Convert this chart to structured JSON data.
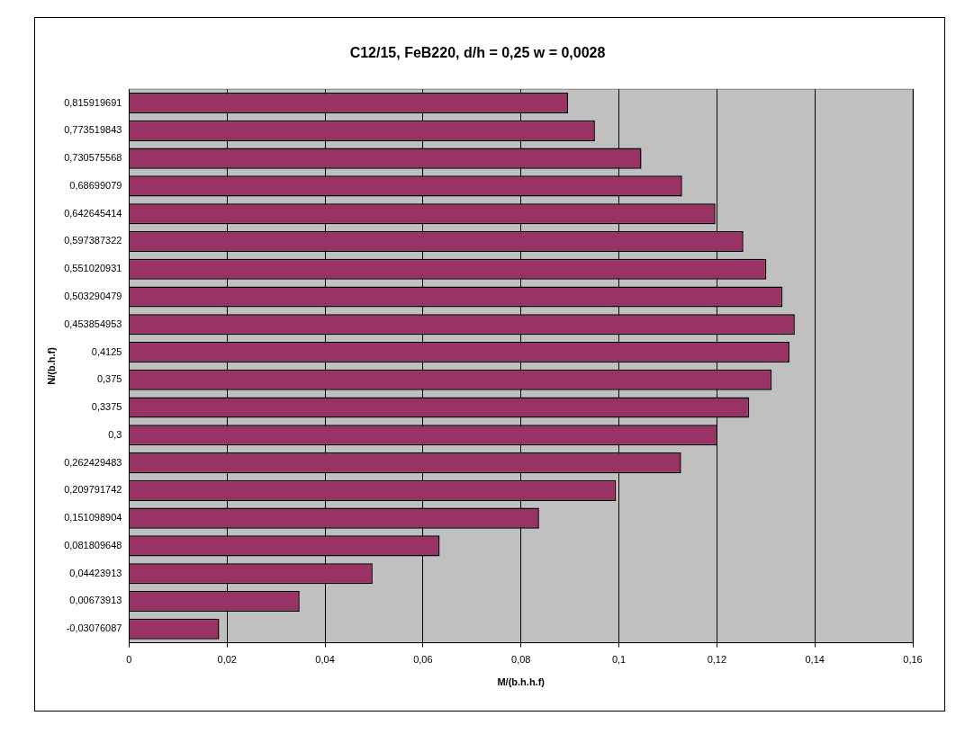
{
  "chart_data": {
    "type": "bar",
    "orientation": "horizontal",
    "title": "C12/15, FeB220, d/h = 0,25 w = 0,0028",
    "xlabel": "M/(b.h.h.f)",
    "ylabel": "N/(b.h.f)",
    "categories": [
      "0,815919691",
      "0,773519843",
      "0,730575568",
      "0,68699079",
      "0,642645414",
      "0,597387322",
      "0,551020931",
      "0,503290479",
      "0,453854953",
      "0,4125",
      "0,375",
      "0,3375",
      "0,3",
      "0,262429483",
      "0,209791742",
      "0,151098904",
      "0,081809648",
      "0,04423913",
      "0,00673913",
      "-0,03076087"
    ],
    "values": [
      0.0896,
      0.0951,
      0.1046,
      0.1129,
      0.1197,
      0.1254,
      0.1301,
      0.1334,
      0.1359,
      0.1348,
      0.1312,
      0.1266,
      0.1201,
      0.1127,
      0.0994,
      0.0837,
      0.0634,
      0.0497,
      0.0348,
      0.0184
    ],
    "color": "#993366",
    "xlim": [
      0,
      0.16
    ],
    "xticks": [
      0,
      {
        "value": 0.02,
        "label": "0,02"
      },
      {
        "value": 0.04,
        "label": "0,04"
      },
      {
        "value": 0.06,
        "label": "0,06"
      },
      {
        "value": 0.08,
        "label": "0,08"
      },
      {
        "value": 0.1,
        "label": "0,1"
      },
      {
        "value": 0.12,
        "label": "0,12"
      },
      {
        "value": 0.14,
        "label": "0,14"
      },
      {
        "value": 0.16,
        "label": "0,16"
      }
    ],
    "grid": "x",
    "legend": false
  }
}
